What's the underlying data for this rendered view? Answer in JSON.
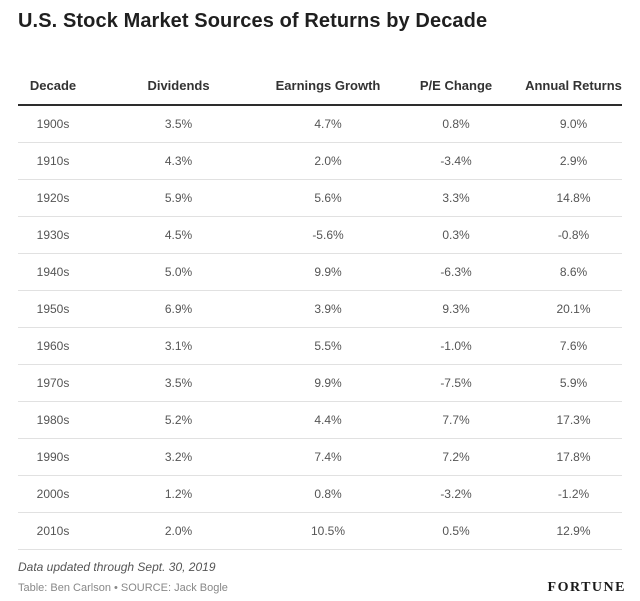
{
  "title": "U.S. Stock Market Sources of Returns by Decade",
  "chart_data": {
    "type": "table",
    "title": "U.S. Stock Market Sources of Returns by Decade",
    "columns": [
      "Decade",
      "Dividends",
      "Earnings Growth",
      "P/E Change",
      "Annual Returns"
    ],
    "rows": [
      [
        "1900s",
        "3.5%",
        "4.7%",
        "0.8%",
        "9.0%"
      ],
      [
        "1910s",
        "4.3%",
        "2.0%",
        "-3.4%",
        "2.9%"
      ],
      [
        "1920s",
        "5.9%",
        "5.6%",
        "3.3%",
        "14.8%"
      ],
      [
        "1930s",
        "4.5%",
        "-5.6%",
        "0.3%",
        "-0.8%"
      ],
      [
        "1940s",
        "5.0%",
        "9.9%",
        "-6.3%",
        "8.6%"
      ],
      [
        "1950s",
        "6.9%",
        "3.9%",
        "9.3%",
        "20.1%"
      ],
      [
        "1960s",
        "3.1%",
        "5.5%",
        "-1.0%",
        "7.6%"
      ],
      [
        "1970s",
        "3.5%",
        "9.9%",
        "-7.5%",
        "5.9%"
      ],
      [
        "1980s",
        "5.2%",
        "4.4%",
        "7.7%",
        "17.3%"
      ],
      [
        "1990s",
        "3.2%",
        "7.4%",
        "7.2%",
        "17.8%"
      ],
      [
        "2000s",
        "1.2%",
        "0.8%",
        "-3.2%",
        "-1.2%"
      ],
      [
        "2010s",
        "2.0%",
        "10.5%",
        "0.5%",
        "12.9%"
      ]
    ]
  },
  "footer": {
    "note": "Data updated through Sept. 30, 2019",
    "credit": "Table: Ben Carlson • SOURCE: Jack Bogle",
    "logo": "FORTUNE"
  }
}
